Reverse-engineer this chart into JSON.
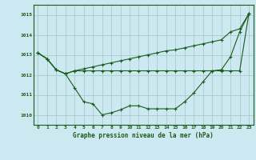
{
  "title": "Graphe pression niveau de la mer (hPa)",
  "background_color": "#cce8f0",
  "grid_color": "#aacccc",
  "line_color": "#1a5c1a",
  "x_labels": [
    "0",
    "1",
    "2",
    "3",
    "4",
    "5",
    "6",
    "7",
    "8",
    "9",
    "10",
    "11",
    "12",
    "13",
    "14",
    "15",
    "16",
    "17",
    "18",
    "19",
    "20",
    "21",
    "22",
    "23"
  ],
  "ylim": [
    1009.5,
    1015.5
  ],
  "yticks": [
    1010,
    1011,
    1012,
    1013,
    1014,
    1015
  ],
  "series_curve": [
    1013.1,
    1012.8,
    1012.25,
    1012.05,
    1011.35,
    1010.65,
    1010.55,
    1010.0,
    1010.1,
    1010.25,
    1010.45,
    1010.45,
    1010.3,
    1010.3,
    1010.3,
    1010.3,
    1010.65,
    1011.1,
    1011.65,
    1012.2,
    1012.25,
    1012.9,
    1014.15,
    1015.05
  ],
  "series_flat": [
    1013.1,
    1012.8,
    1012.25,
    1012.05,
    1012.2,
    1012.2,
    1012.2,
    1012.2,
    1012.2,
    1012.2,
    1012.2,
    1012.2,
    1012.2,
    1012.2,
    1012.2,
    1012.2,
    1012.2,
    1012.2,
    1012.2,
    1012.2,
    1012.2,
    1012.2,
    1012.2,
    1015.05
  ],
  "series_diag": [
    1013.1,
    1012.8,
    1012.25,
    1012.05,
    1012.2,
    1012.3,
    1012.4,
    1012.5,
    1012.6,
    1012.7,
    1012.8,
    1012.9,
    1013.0,
    1013.1,
    1013.2,
    1013.25,
    1013.35,
    1013.45,
    1013.55,
    1013.65,
    1013.75,
    1014.15,
    1014.3,
    1015.05
  ]
}
